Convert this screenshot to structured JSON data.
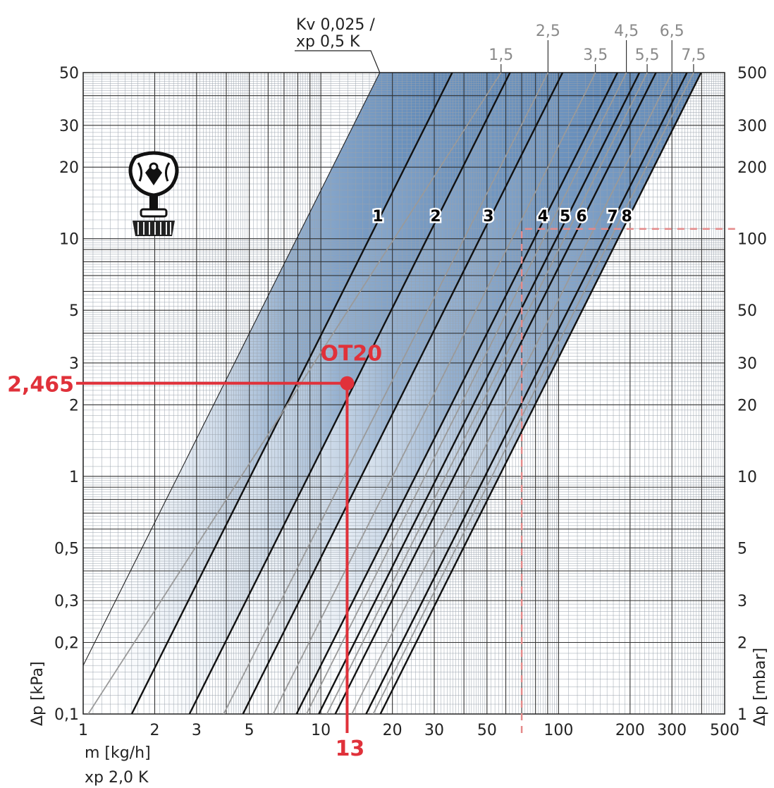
{
  "chart_data": {
    "type": "line",
    "x_scale": "log",
    "y_scale": "log",
    "xlim": [
      1,
      500
    ],
    "ylim": [
      0.1,
      50
    ],
    "y2lim": [
      1,
      500
    ],
    "x_ticks": [
      {
        "v": 1,
        "label": "1"
      },
      {
        "v": 2,
        "label": "2"
      },
      {
        "v": 3,
        "label": "3"
      },
      {
        "v": 5,
        "label": "5"
      },
      {
        "v": 10,
        "label": "10"
      },
      {
        "v": 20,
        "label": "20"
      },
      {
        "v": 30,
        "label": "30"
      },
      {
        "v": 50,
        "label": "50"
      },
      {
        "v": 100,
        "label": "100"
      },
      {
        "v": 200,
        "label": "200"
      },
      {
        "v": 300,
        "label": "300"
      },
      {
        "v": 500,
        "label": "500"
      }
    ],
    "y_ticks": [
      {
        "v": 0.1,
        "label": "0,1"
      },
      {
        "v": 0.2,
        "label": "0,2"
      },
      {
        "v": 0.3,
        "label": "0,3"
      },
      {
        "v": 0.5,
        "label": "0,5"
      },
      {
        "v": 1,
        "label": "1"
      },
      {
        "v": 2,
        "label": "2"
      },
      {
        "v": 3,
        "label": "3"
      },
      {
        "v": 5,
        "label": "5"
      },
      {
        "v": 10,
        "label": "10"
      },
      {
        "v": 20,
        "label": "20"
      },
      {
        "v": 30,
        "label": "30"
      },
      {
        "v": 50,
        "label": "50"
      }
    ],
    "y2_ticks": [
      {
        "v": 1,
        "label": "1"
      },
      {
        "v": 2,
        "label": "2"
      },
      {
        "v": 3,
        "label": "3"
      },
      {
        "v": 5,
        "label": "5"
      },
      {
        "v": 10,
        "label": "10"
      },
      {
        "v": 20,
        "label": "20"
      },
      {
        "v": 30,
        "label": "30"
      },
      {
        "v": 50,
        "label": "50"
      },
      {
        "v": 100,
        "label": "100"
      },
      {
        "v": 200,
        "label": "200"
      },
      {
        "v": 300,
        "label": "300"
      },
      {
        "v": 500,
        "label": "500"
      }
    ],
    "xlabel": "m [kg/h]",
    "xlabel2": "xp 2,0 K",
    "ylabel": "Δp [kPa]",
    "y2label": "Δp [mbar]",
    "grid": true,
    "series": [
      {
        "name": "Kv 0,025 / xp 0,5 K",
        "style": "thin",
        "points": [
          [
            1,
            0.16
          ],
          [
            17.7,
            50
          ]
        ]
      },
      {
        "name": "1",
        "style": "bold",
        "points": [
          [
            1.6,
            0.1
          ],
          [
            35.7,
            50
          ]
        ]
      },
      {
        "name": "2",
        "style": "bold",
        "points": [
          [
            2.8,
            0.1
          ],
          [
            62.5,
            50
          ]
        ]
      },
      {
        "name": "3",
        "style": "bold",
        "points": [
          [
            4.7,
            0.1
          ],
          [
            104,
            50
          ]
        ]
      },
      {
        "name": "4",
        "style": "bold",
        "points": [
          [
            7.9,
            0.1
          ],
          [
            177,
            50
          ]
        ]
      },
      {
        "name": "5",
        "style": "bold",
        "points": [
          [
            9.8,
            0.1
          ],
          [
            219,
            50
          ]
        ]
      },
      {
        "name": "6",
        "style": "bold",
        "points": [
          [
            11.5,
            0.1
          ],
          [
            257,
            50
          ]
        ]
      },
      {
        "name": "7",
        "style": "bold",
        "points": [
          [
            15.5,
            0.1
          ],
          [
            347,
            50
          ]
        ]
      },
      {
        "name": "8",
        "style": "bold",
        "points": [
          [
            17.8,
            0.1
          ],
          [
            398,
            50
          ]
        ]
      },
      {
        "name": "1,5",
        "style": "gray",
        "points": [
          [
            1.05,
            0.1
          ],
          [
            57.3,
            50
          ]
        ]
      },
      {
        "name": "2,5",
        "style": "gray",
        "points": [
          [
            3.9,
            0.1
          ],
          [
            90.3,
            50
          ]
        ]
      },
      {
        "name": "3,5",
        "style": "gray",
        "points": [
          [
            6.3,
            0.1
          ],
          [
            143,
            50
          ]
        ]
      },
      {
        "name": "4,5",
        "style": "gray",
        "points": [
          [
            8.7,
            0.1
          ],
          [
            193,
            50
          ]
        ]
      },
      {
        "name": "5,5",
        "style": "gray",
        "points": [
          [
            10.6,
            0.1
          ],
          [
            236,
            50
          ]
        ]
      },
      {
        "name": "6,5",
        "style": "gray",
        "points": [
          [
            13.5,
            0.1
          ],
          [
            300,
            50
          ]
        ]
      },
      {
        "name": "7,5",
        "style": "gray",
        "points": [
          [
            16.6,
            0.1
          ],
          [
            370,
            50
          ]
        ]
      }
    ],
    "curve_labels": [
      "1",
      "2",
      "3",
      "4",
      "5",
      "6",
      "7",
      "8"
    ],
    "kv_top_labels": [
      "1,5",
      "2,5",
      "3,5",
      "4,5",
      "5,5",
      "6,5",
      "7,5"
    ],
    "kv_header": [
      "Kv 0,025 /",
      "xp 0,5 K"
    ],
    "annotations": [
      {
        "label": "OT20",
        "x": 12.9,
        "y": 2.465,
        "x_label": "13",
        "y_label": "2,465",
        "color": "#e0313a"
      }
    ],
    "dashed_reference": {
      "x": 70,
      "y": 11,
      "color": "#e58a8a"
    }
  },
  "colors": {
    "red": "#e0313a",
    "band": "#3d6fa8",
    "grid": "#222222",
    "gray_line": "#9a9a9a"
  },
  "icons": [
    "thermostatic-valve-icon"
  ]
}
